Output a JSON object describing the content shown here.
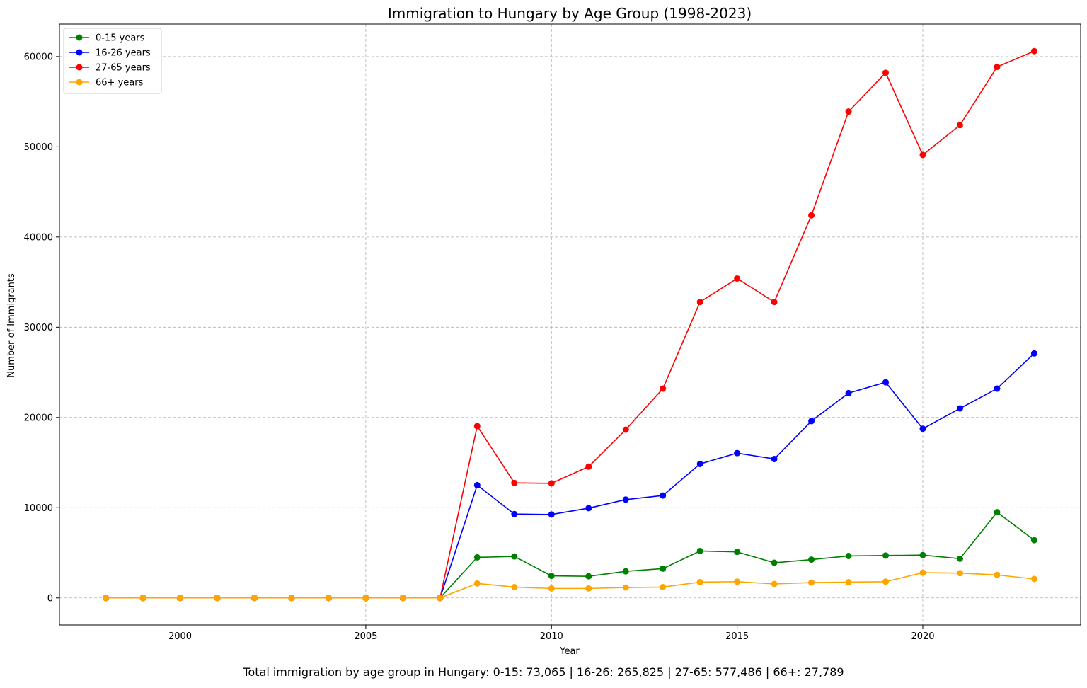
{
  "chart_data": {
    "type": "line",
    "title": "Immigration to Hungary by Age Group (1998-2023)",
    "xlabel": "Year",
    "ylabel": "Number of Immigrants",
    "xlim": [
      1996.75,
      2024.25
    ],
    "ylim": [
      -3000,
      63600
    ],
    "xticks": [
      2000,
      2005,
      2010,
      2015,
      2020
    ],
    "yticks": [
      0,
      10000,
      20000,
      30000,
      40000,
      50000,
      60000
    ],
    "grid": true,
    "legend_position": "top-left",
    "x": [
      1998,
      1999,
      2000,
      2001,
      2002,
      2003,
      2004,
      2005,
      2006,
      2007,
      2008,
      2009,
      2010,
      2011,
      2012,
      2013,
      2014,
      2015,
      2016,
      2017,
      2018,
      2019,
      2020,
      2021,
      2022,
      2023
    ],
    "series": [
      {
        "name": "0-15 years",
        "color": "#008000",
        "values": [
          0,
          0,
          0,
          0,
          0,
          0,
          0,
          0,
          0,
          0,
          4500,
          4600,
          2450,
          2400,
          2950,
          3250,
          5200,
          5100,
          3900,
          4250,
          4650,
          4700,
          4750,
          4350,
          9500,
          6400
        ]
      },
      {
        "name": "16-26 years",
        "color": "#0000ff",
        "values": [
          0,
          0,
          0,
          0,
          0,
          0,
          0,
          0,
          0,
          0,
          12500,
          9300,
          9250,
          9950,
          10900,
          11350,
          14850,
          16050,
          15400,
          19600,
          22700,
          23900,
          18750,
          21000,
          23200,
          27100
        ]
      },
      {
        "name": "27-65 years",
        "color": "#ff0000",
        "values": [
          0,
          0,
          0,
          0,
          0,
          0,
          0,
          0,
          0,
          0,
          19050,
          12750,
          12700,
          14550,
          18650,
          23200,
          32800,
          35400,
          32800,
          42400,
          53900,
          58200,
          49100,
          52400,
          58850,
          60600
        ]
      },
      {
        "name": "66+ years",
        "color": "#ffa500",
        "values": [
          0,
          0,
          0,
          0,
          0,
          0,
          0,
          0,
          0,
          0,
          1600,
          1200,
          1050,
          1050,
          1150,
          1200,
          1750,
          1800,
          1550,
          1700,
          1750,
          1800,
          2800,
          2750,
          2550,
          2100
        ]
      }
    ]
  },
  "footnote": "Total immigration by age group in Hungary: 0-15: 73,065 | 16-26: 265,825 | 27-65: 577,486 | 66+: 27,789"
}
